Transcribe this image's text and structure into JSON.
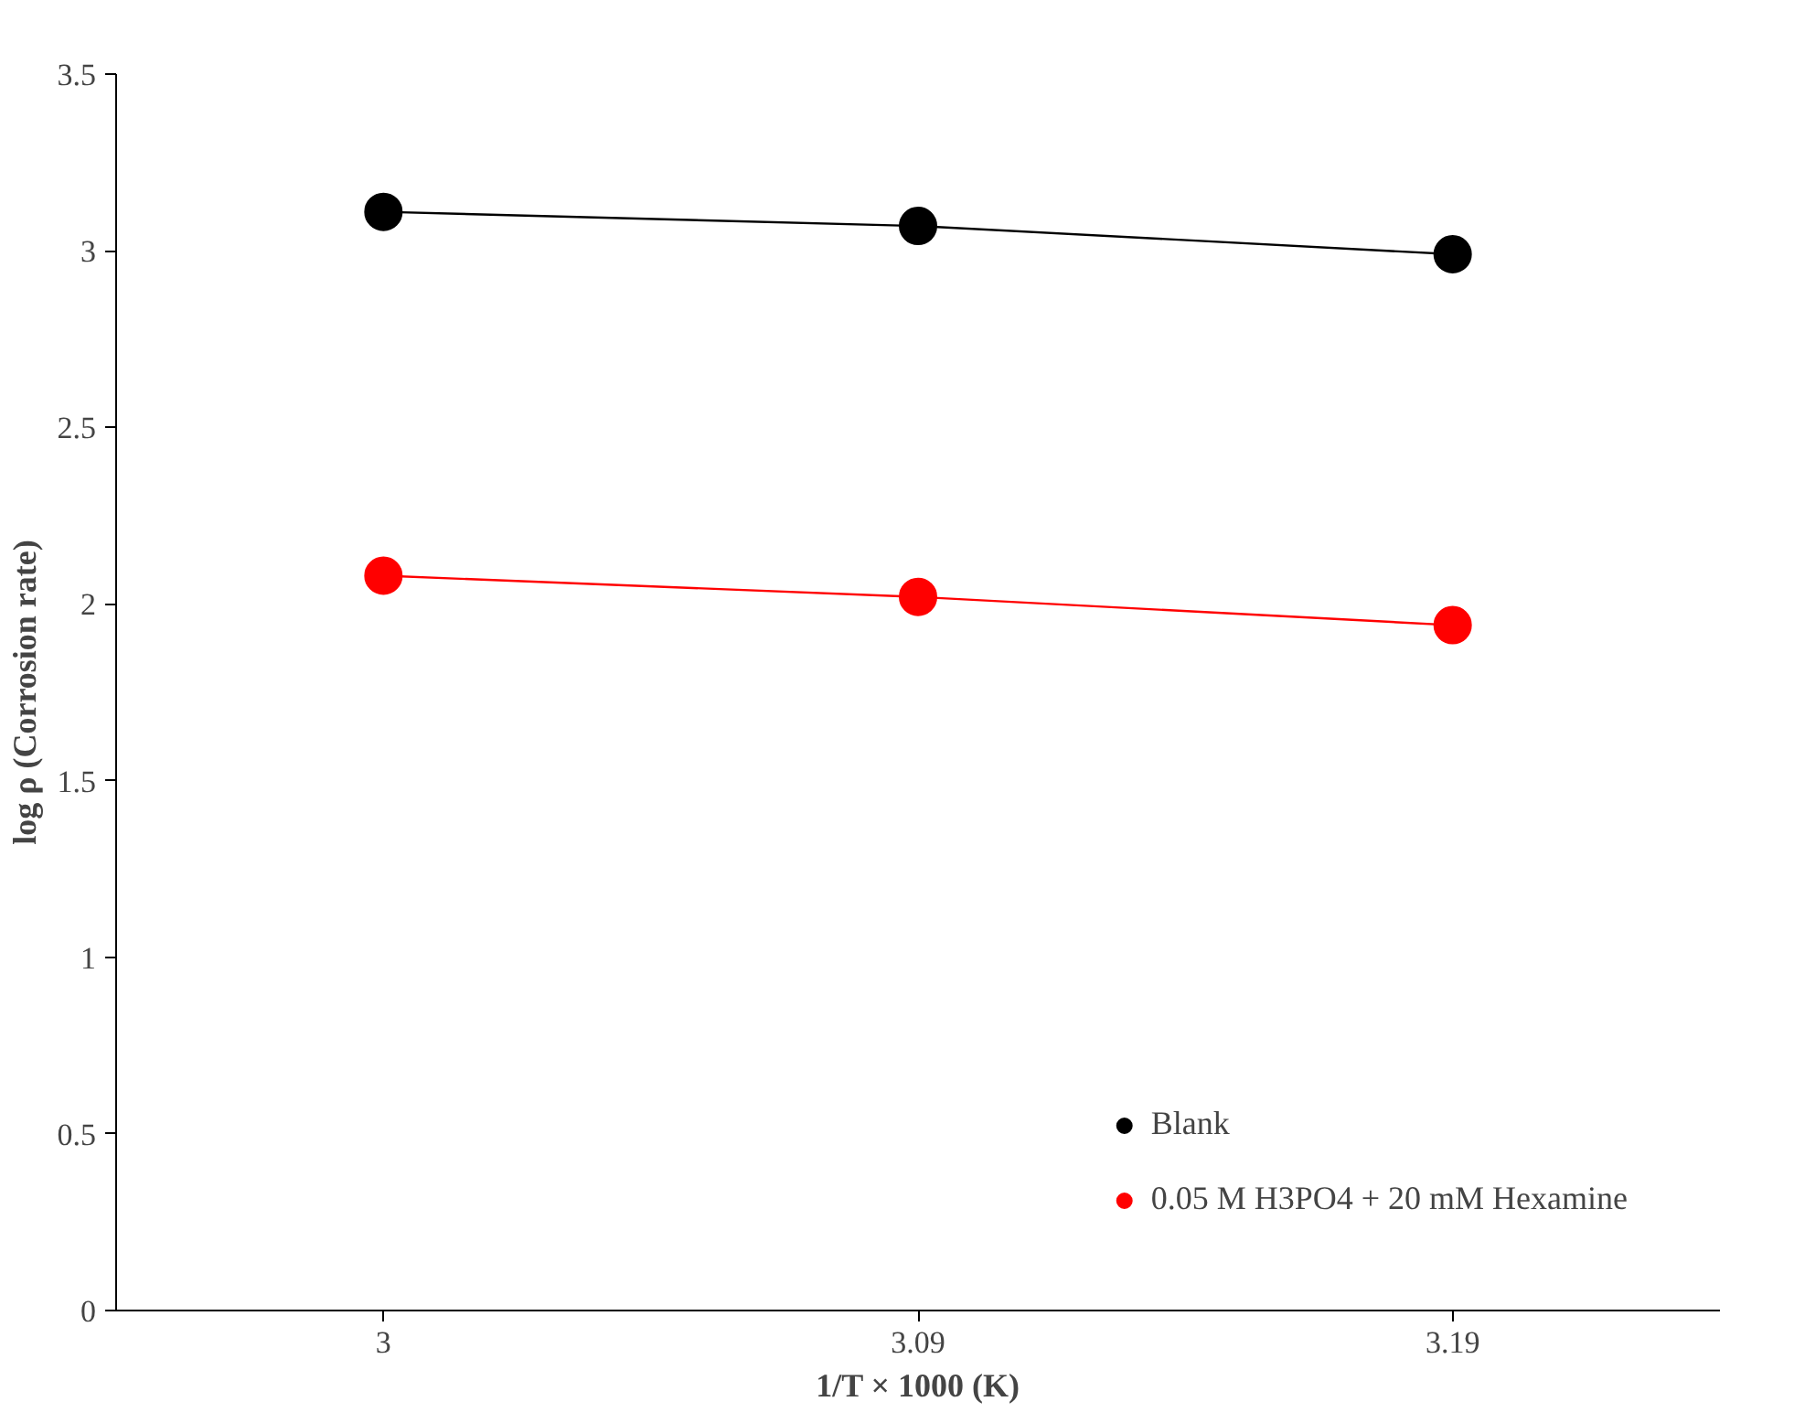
{
  "chart_data": {
    "type": "line",
    "xlabel": "1/T × 1000 (K)",
    "ylabel": "log ρ (Corrosion rate)",
    "categories": [
      "3",
      "3.09",
      "3.19"
    ],
    "series": [
      {
        "name": "Blank",
        "color": "#000000",
        "values": [
          3.11,
          3.07,
          2.99
        ]
      },
      {
        "name": "0.05 M H3PO4 + 20 mM Hexamine",
        "color": "#ff0000",
        "values": [
          2.08,
          2.02,
          1.94
        ]
      }
    ],
    "ylim": [
      0,
      3.5
    ],
    "yticks": [
      0,
      0.5,
      1,
      1.5,
      2,
      2.5,
      3,
      3.5
    ],
    "marker": "circle",
    "grid": false,
    "legend": "bottom right"
  }
}
